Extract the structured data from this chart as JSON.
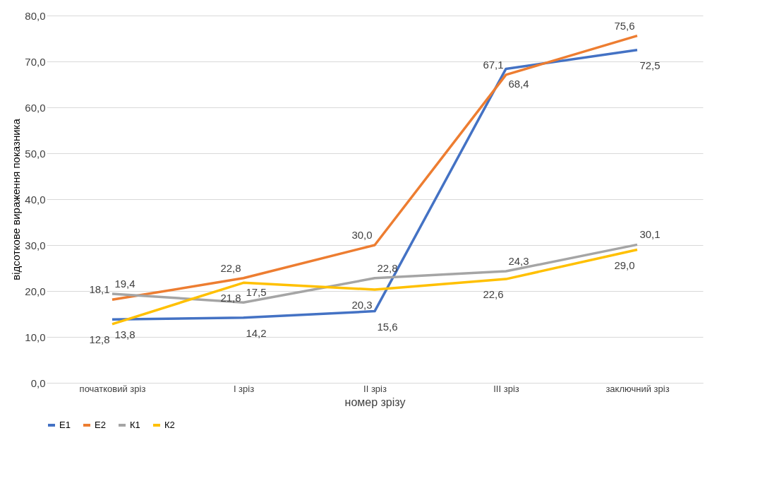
{
  "chart_data": {
    "type": "line",
    "xlabel": "номер зрізу",
    "ylabel": "відсоткове вираження показника",
    "categories": [
      "початковий зріз",
      "І зріз",
      "ІІ зріз",
      "ІІІ зріз",
      "заключний зріз"
    ],
    "series": [
      {
        "name": "Е1",
        "color": "#4472c4",
        "values": [
          13.8,
          14.2,
          15.6,
          68.4,
          72.5
        ],
        "value_labels": [
          "13,8",
          "14,2",
          "15,6",
          "68,4",
          "72,5"
        ]
      },
      {
        "name": "Е2",
        "color": "#ed7d31",
        "values": [
          18.1,
          22.8,
          30.0,
          67.1,
          75.6
        ],
        "value_labels": [
          "18,1",
          "22,8",
          "30,0",
          "67,1",
          "75,6"
        ]
      },
      {
        "name": "К1",
        "color": "#a5a5a5",
        "values": [
          19.4,
          17.5,
          22.8,
          24.3,
          30.1
        ],
        "value_labels": [
          "19,4",
          "17,5",
          "22,8",
          "24,3",
          "30,1"
        ]
      },
      {
        "name": "К2",
        "color": "#ffc000",
        "values": [
          12.8,
          21.8,
          20.3,
          22.6,
          29.0
        ],
        "value_labels": [
          "12,8",
          "21,8",
          "20,3",
          "22,6",
          "29,0"
        ]
      }
    ],
    "ylim": [
      0,
      80
    ],
    "yticks": [
      {
        "value": 0,
        "label": "0,0"
      },
      {
        "value": 10,
        "label": "10,0"
      },
      {
        "value": 20,
        "label": "20,0"
      },
      {
        "value": 30,
        "label": "30,0"
      },
      {
        "value": 40,
        "label": "40,0"
      },
      {
        "value": 50,
        "label": "50,0"
      },
      {
        "value": 60,
        "label": "60,0"
      },
      {
        "value": 70,
        "label": "70,0"
      },
      {
        "value": 80,
        "label": "80,0"
      }
    ],
    "grid": "y",
    "legend": "bottom",
    "marker": "none",
    "line_style": "solid"
  }
}
